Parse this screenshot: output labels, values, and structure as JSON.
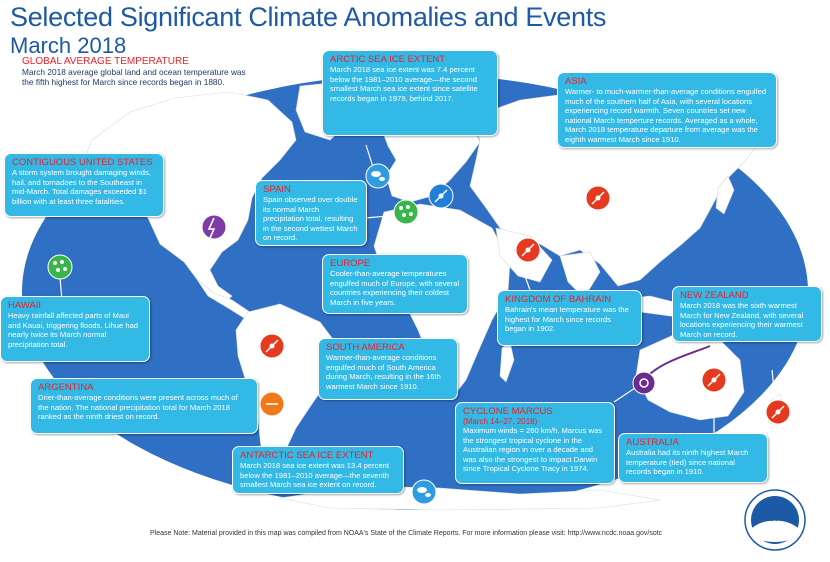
{
  "title": "Selected Significant Climate Anomalies and Events",
  "subtitle": "March 2018",
  "global": {
    "heading": "GLOBAL AVERAGE TEMPERATURE",
    "text": "March 2018 average global land and ocean temperature was the fifth highest for March since records began in 1880."
  },
  "boxes": {
    "arctic": {
      "title": "ARCTIC SEA ICE EXTENT",
      "text": "March 2018 sea ice extent was 7.4 percent below the 1981–2010 average—the second smallest March sea ice extent since satellite records began in 1979, behind 2017."
    },
    "asia": {
      "title": "ASIA",
      "text": "Warmer- to much-warmer-than-average conditions engulfed much of the southern half of Asia, with several locations experiencing record warmth. Seven countries set new national March temperture records. Averaged as a whole, March 2018 temperature departure from average was the eighth warmest March since 1910."
    },
    "conus": {
      "title": "CONTIGUOUS UNITED STATES",
      "text": "A storm system brought damaging winds, hail, and tornadoes to the Southeast in mid-March. Total damages exceeded $1 billion with at least three fatalities."
    },
    "spain": {
      "title": "SPAIN",
      "text": "Spain observed over double its normal March precipitation total, resulting in the second wettest March on record."
    },
    "europe": {
      "title": "EUROPE",
      "text": "Cooler-than-average temperatures engulfed much of Europe, with several countries experiencing their coldest March in five years."
    },
    "hawaii": {
      "title": "HAWAII",
      "text": "Heavy rainfall affected parts of Maui and Kauai, triggering floods. Lihue had nearly twice its March normal precipitation total."
    },
    "bahrain": {
      "title": "KINGDOM OF BAHRAIN",
      "text": "Bahrain's mean temperature was the highest for March since records began in 1902."
    },
    "nz": {
      "title": "NEW ZEALAND",
      "text": "March 2018 was the sixth warmest March for New Zealand, with several locations experiencing their warmest March on record."
    },
    "samerica": {
      "title": "SOUTH AMERICA",
      "text": "Warmer-than-average conditions engulfed much of South America during March, resulting in the 16th warmest March since 1910."
    },
    "argentina": {
      "title": "ARGENTINA",
      "text": "Drier-than-average conditions were present across much of the nation. The national precipitation total for March 2018 ranked as the ninth driest on record."
    },
    "marcus": {
      "title": "CYCLONE MARCUS",
      "dates": "(March 14–27, 2018)",
      "text": "Maximum winds = 260 km/h. Marcus was the strongest tropical cyclone in the Australian region in over a decade and was also the strongest to impact Darwin since Tropical Cyclone Tracy in 1974."
    },
    "australia": {
      "title": "AUSTRALIA",
      "text": "Australia had its ninth highest March temperature (tied) since national records began in 1910."
    },
    "antarctic": {
      "title": "ANTARCTIC SEA ICE EXTENT",
      "text": "March 2018 sea ice extent was 13.4 percent below the 1981–2010 average—the seventh smallest March sea ice extent on record."
    }
  },
  "note": "Please Note: Material provided in this map was compiled from NOAA's State of the Climate Reports. For more information please visit: http://www.ncdc.noaa.gov/sotc",
  "logo_text": "NOAA",
  "colors": {
    "ocean": "#2f6fc4",
    "land": "#ffffff",
    "box": "#33b9e6",
    "title": "#1d5aa6",
    "heading": "#e8212a",
    "warm": "#e53920",
    "cool": "#1e80d8",
    "wet": "#39b54a",
    "dry": "#f07a1a",
    "storm": "#7e3aa7",
    "cyclone": "#6a2d8f"
  },
  "icons": [
    "warm-temperature-icon",
    "cool-temperature-icon",
    "wet-precipitation-icon",
    "dry-precipitation-icon",
    "severe-storm-icon",
    "tropical-cyclone-icon",
    "sea-ice-icon"
  ]
}
